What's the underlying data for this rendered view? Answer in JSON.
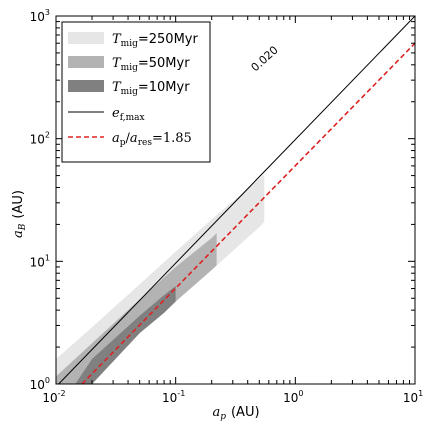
{
  "chart_data": {
    "type": "area",
    "title": "",
    "xlabel": {
      "var": "a",
      "sub": "p",
      "unit": "(AU)"
    },
    "ylabel": {
      "var": "a",
      "sub": "B",
      "unit": "(AU)"
    },
    "xscale": "log",
    "yscale": "log",
    "xlim": [
      0.01,
      10
    ],
    "ylim": [
      1,
      1000
    ],
    "grid": false,
    "legend_position": "top-left",
    "x_ticks": [
      {
        "base": "10",
        "exp": "-2"
      },
      {
        "base": "10",
        "exp": "-1"
      },
      {
        "base": "10",
        "exp": "0"
      },
      {
        "base": "10",
        "exp": "1"
      }
    ],
    "y_ticks": [
      {
        "base": "10",
        "exp": "0"
      },
      {
        "base": "10",
        "exp": "1"
      },
      {
        "base": "10",
        "exp": "2"
      },
      {
        "base": "10",
        "exp": "3"
      }
    ],
    "bands": [
      {
        "name": "T_mig=250Myr",
        "label": {
          "var": "T",
          "sub": "mig",
          "rest": "=250Myr"
        },
        "color": "#e6e6e6",
        "x": [
          0.01,
          0.02,
          0.05,
          0.1,
          0.2,
          0.5,
          0.55
        ],
        "upper": [
          1.6,
          2.9,
          6.5,
          12.0,
          22.0,
          47.0,
          51.0
        ],
        "lower": [
          1.0,
          1.0,
          2.6,
          4.7,
          8.5,
          19.0,
          21.0
        ]
      },
      {
        "name": "T_mig=50Myr",
        "label": {
          "var": "T",
          "sub": "mig",
          "rest": "=50Myr"
        },
        "color": "#b3b3b3",
        "x": [
          0.01,
          0.02,
          0.05,
          0.1,
          0.2,
          0.22
        ],
        "upper": [
          1.15,
          2.15,
          4.9,
          9.0,
          15.5,
          17.0
        ],
        "lower": [
          1.0,
          1.0,
          2.6,
          4.7,
          8.5,
          9.3
        ]
      },
      {
        "name": "T_mig=10Myr",
        "label": {
          "var": "T",
          "sub": "mig",
          "rest": "=10Myr"
        },
        "color": "#808080",
        "x": [
          0.0145,
          0.02,
          0.05,
          0.08,
          0.1
        ],
        "upper": [
          1.0,
          1.6,
          3.6,
          5.3,
          6.3
        ],
        "lower": [
          1.0,
          1.0,
          2.6,
          3.8,
          4.7
        ]
      }
    ],
    "lines": [
      {
        "name": "e_f,max",
        "label": {
          "var": "e",
          "sub": "f,max",
          "rest": ""
        },
        "color": "#000000",
        "style": "solid",
        "x": [
          0.01,
          10
        ],
        "y": [
          0.95,
          1000
        ]
      },
      {
        "name": "a_p/a_res=1.85",
        "label": {
          "var": "a",
          "sub": "p",
          "rest2": "/",
          "var2": "a",
          "sub2": "res",
          "rest": "=1.85"
        },
        "color": "#dd2222",
        "style": "dashed",
        "x": [
          0.0165,
          10
        ],
        "y": [
          1.0,
          600
        ]
      }
    ],
    "annotations": [
      {
        "text": "0.020",
        "x": 0.55,
        "y": 450,
        "rotation": -42
      }
    ]
  }
}
